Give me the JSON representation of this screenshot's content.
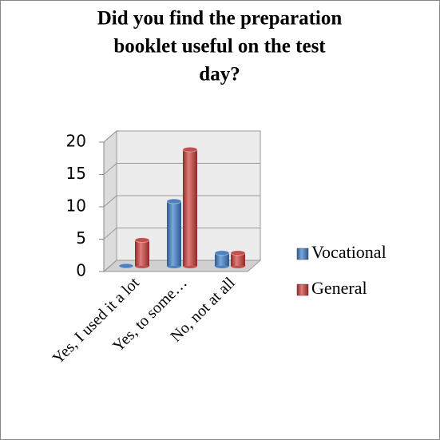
{
  "chart_data": {
    "type": "bar3d",
    "title": [
      "Did you find the preparation",
      "booklet useful on the test",
      "day?"
    ],
    "categories": [
      "Yes, I used it a lot",
      "Yes, to some…",
      "No, not at all"
    ],
    "series": [
      {
        "name": "Vocational",
        "color": "#4f81bd",
        "values": [
          0,
          10,
          2
        ]
      },
      {
        "name": "General",
        "color": "#c0504d",
        "values": [
          4,
          18,
          2
        ]
      }
    ],
    "ylim": [
      0,
      20
    ],
    "yticks": [
      0,
      5,
      10,
      15,
      20
    ],
    "grid": true,
    "legend": "right"
  }
}
